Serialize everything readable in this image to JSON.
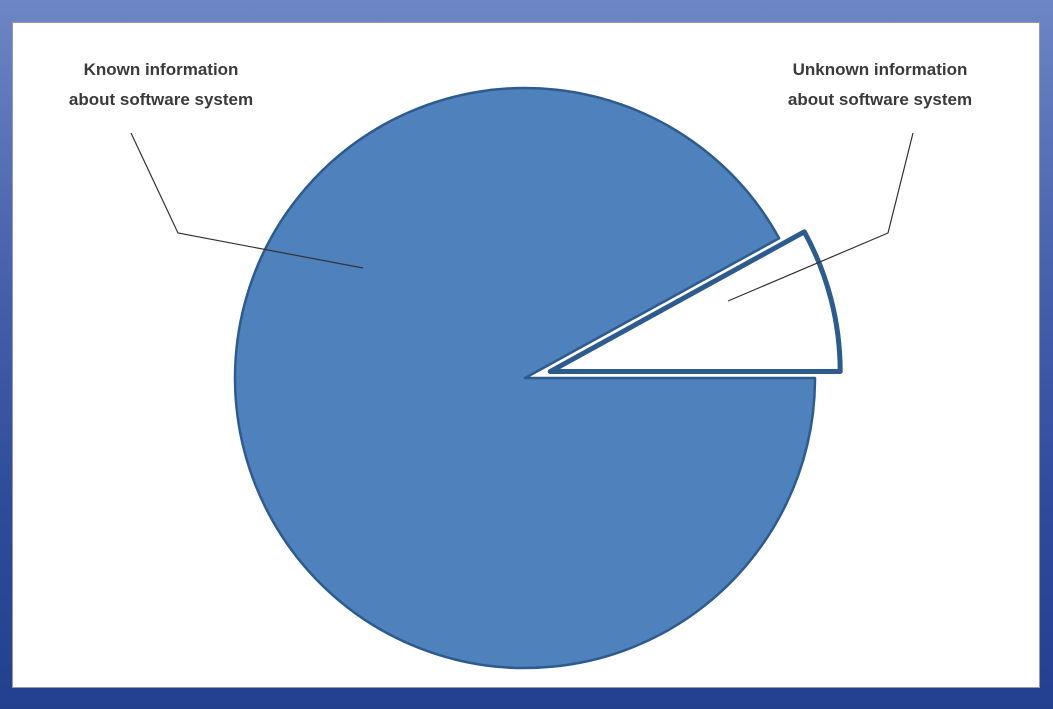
{
  "chart_data": {
    "type": "pie",
    "title": "",
    "slices": [
      {
        "label": "Known information about software system",
        "value": 92,
        "color": "#4f81bd",
        "exploded": false
      },
      {
        "label": "Unknown information about software system",
        "value": 8,
        "color": "#ffffff",
        "exploded": true
      }
    ],
    "annotations": [
      {
        "text_lines": [
          "Known information",
          "about software system"
        ],
        "points_to": "Known information about software system"
      },
      {
        "text_lines": [
          "Unknown information",
          "about software system"
        ],
        "points_to": "Unknown information about software system"
      }
    ],
    "legend": "none",
    "slice_border_color": "#2e5b8e"
  },
  "colors": {
    "background_top": "#6d86c4",
    "background_bottom": "#23408f",
    "panel": "#ffffff"
  }
}
